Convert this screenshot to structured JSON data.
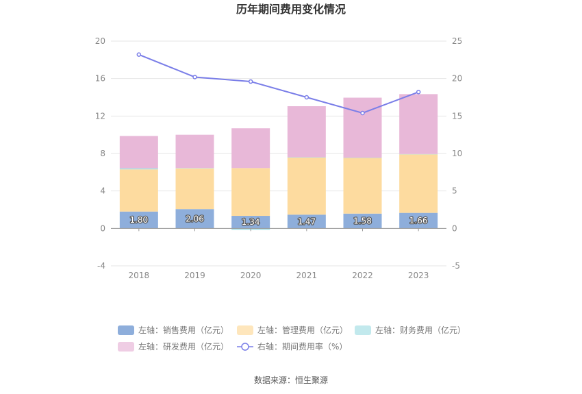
{
  "chart_data": {
    "type": "bar",
    "title": "历年期间费用变化情况",
    "categories": [
      "2018",
      "2019",
      "2020",
      "2021",
      "2022",
      "2023"
    ],
    "stacked": true,
    "left_axis": {
      "ylim": [
        -4,
        20
      ],
      "ticks": [
        "-4",
        "0",
        "4",
        "8",
        "12",
        "16",
        "20"
      ]
    },
    "right_axis": {
      "ylim": [
        -5,
        25
      ],
      "ticks": [
        "-5",
        "0",
        "5",
        "10",
        "15",
        "20",
        "25"
      ]
    },
    "series": [
      {
        "name": "左轴：销售费用（亿元）",
        "axis": "left",
        "kind": "bar",
        "color": "#8eaedb",
        "values": [
          1.8,
          2.06,
          1.34,
          1.47,
          1.58,
          1.66
        ],
        "labels": [
          "1.80",
          "2.06",
          "1.34",
          "1.47",
          "1.58",
          "1.66"
        ]
      },
      {
        "name": "左轴：管理费用（亿元）",
        "axis": "left",
        "kind": "bar",
        "color": "#fddb9f",
        "values": [
          4.5,
          4.35,
          5.1,
          6.1,
          5.95,
          6.25
        ]
      },
      {
        "name": "左轴：财务费用（亿元）",
        "axis": "left",
        "kind": "bar",
        "color": "#a8e0e5",
        "values": [
          0.12,
          0.04,
          -0.15,
          0.03,
          0.03,
          0.03
        ]
      },
      {
        "name": "左轴：研发费用（亿元）",
        "axis": "left",
        "kind": "bar",
        "color": "#e8b8d8",
        "values": [
          3.45,
          3.55,
          4.25,
          5.45,
          6.4,
          6.4
        ]
      },
      {
        "name": "右轴：期间费用率（%）",
        "axis": "right",
        "kind": "line",
        "color": "#7a7ee8",
        "values": [
          23.2,
          20.2,
          19.6,
          17.5,
          15.4,
          18.2
        ]
      }
    ],
    "grid": true,
    "legend_position": "bottom"
  },
  "source_text": "数据来源：恒生聚源"
}
